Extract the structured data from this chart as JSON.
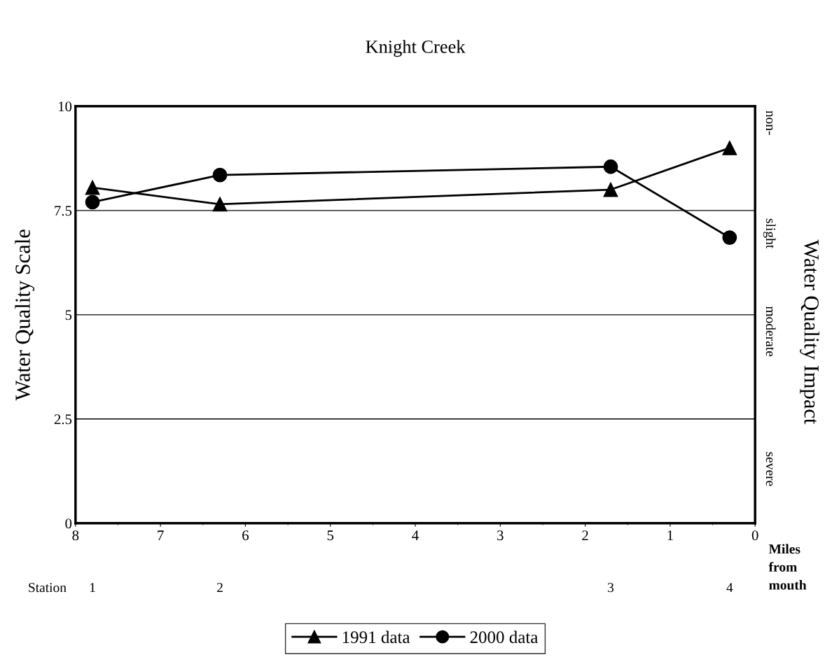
{
  "chart_data": {
    "type": "line",
    "title": "Knight Creek",
    "ylabel": "Water Quality Scale",
    "y2label": "Water Quality Impact",
    "xlabel": "Miles from mouth",
    "xlim": [
      8,
      0
    ],
    "xticks": [
      8,
      7,
      6,
      5,
      4,
      3,
      2,
      1,
      0
    ],
    "ylim": [
      0,
      10
    ],
    "yticks": [
      0,
      2.5,
      5,
      7.5,
      10
    ],
    "annotations": [
      "non-",
      "slight",
      "moderate",
      "severe",
      "Station",
      "1",
      "2",
      "3",
      "4"
    ],
    "grid": "y",
    "legend": "bottom",
    "series": [
      {
        "name": "1991 data",
        "color": "#000000",
        "marker": "triangle",
        "x": [
          7.8,
          6.3,
          1.7,
          0.3
        ],
        "values": [
          8.05,
          7.65,
          8.0,
          9.0
        ]
      },
      {
        "name": "2000 data",
        "color": "#000000",
        "marker": "circle",
        "x": [
          7.8,
          6.3,
          1.7,
          0.3
        ],
        "values": [
          7.7,
          8.35,
          8.55,
          6.85
        ]
      }
    ]
  }
}
